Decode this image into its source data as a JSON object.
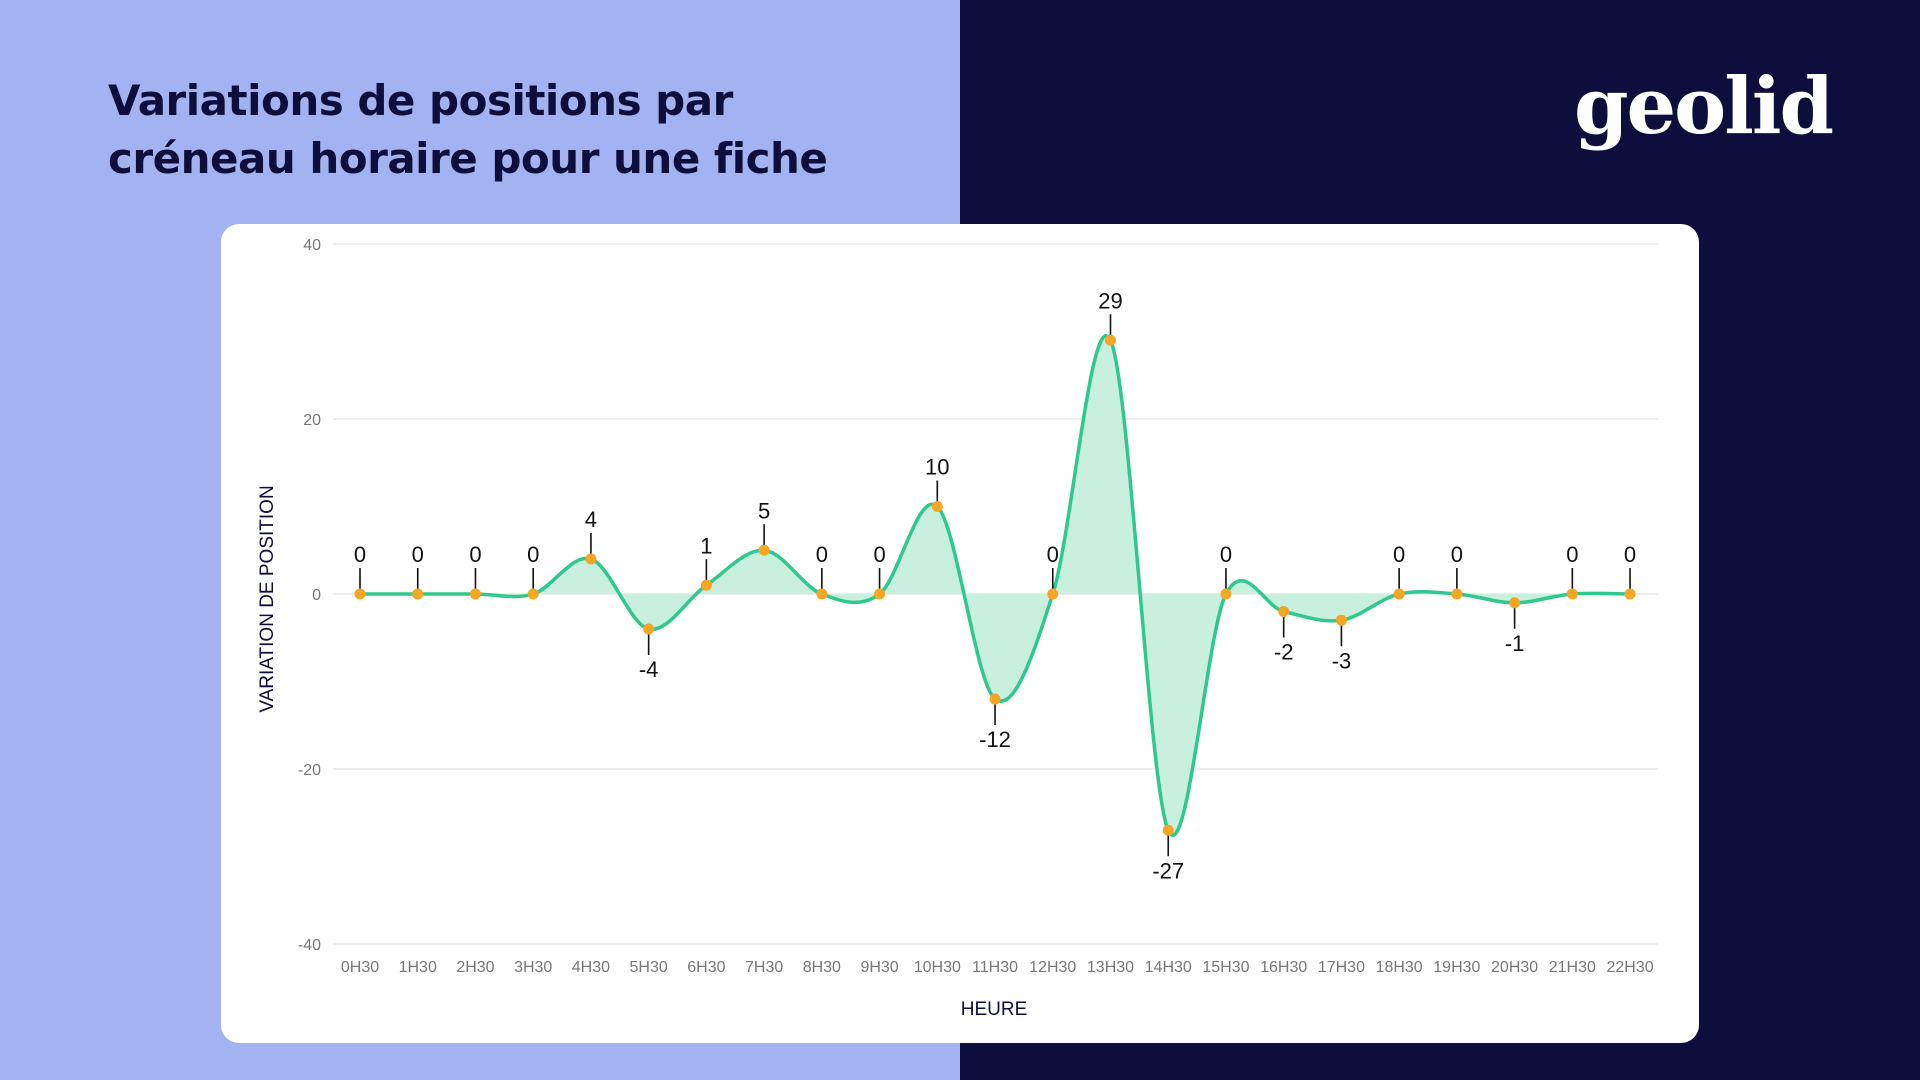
{
  "page": {
    "title": "Variations de positions par créneau horaire pour une fiche",
    "logo_text": "geolid",
    "colors": {
      "left_background": "#a3b3f1",
      "right_background": "#0d0e3b",
      "title_color": "#0d0e3b",
      "line": "#2fc88e",
      "area_fill": "#c9efdf",
      "point": "#f5a623"
    }
  },
  "chart_data": {
    "type": "area",
    "title": "",
    "xlabel": "HEURE",
    "ylabel": "VARIATION DE POSITION",
    "ylim": [
      -40,
      40
    ],
    "yticks": [
      -40,
      -20,
      0,
      20,
      40
    ],
    "grid": true,
    "categories": [
      "0H30",
      "1H30",
      "2H30",
      "3H30",
      "4H30",
      "5H30",
      "6H30",
      "7H30",
      "8H30",
      "9H30",
      "10H30",
      "11H30",
      "12H30",
      "13H30",
      "14H30",
      "15H30",
      "16H30",
      "17H30",
      "18H30",
      "19H30",
      "20H30",
      "21H30",
      "22H30"
    ],
    "series": [
      {
        "values": [
          0,
          0,
          0,
          0,
          4,
          -4,
          1,
          5,
          0,
          0,
          10,
          -12,
          0,
          29,
          -27,
          0,
          -2,
          -3,
          0,
          0,
          -1,
          0,
          0
        ]
      }
    ]
  }
}
